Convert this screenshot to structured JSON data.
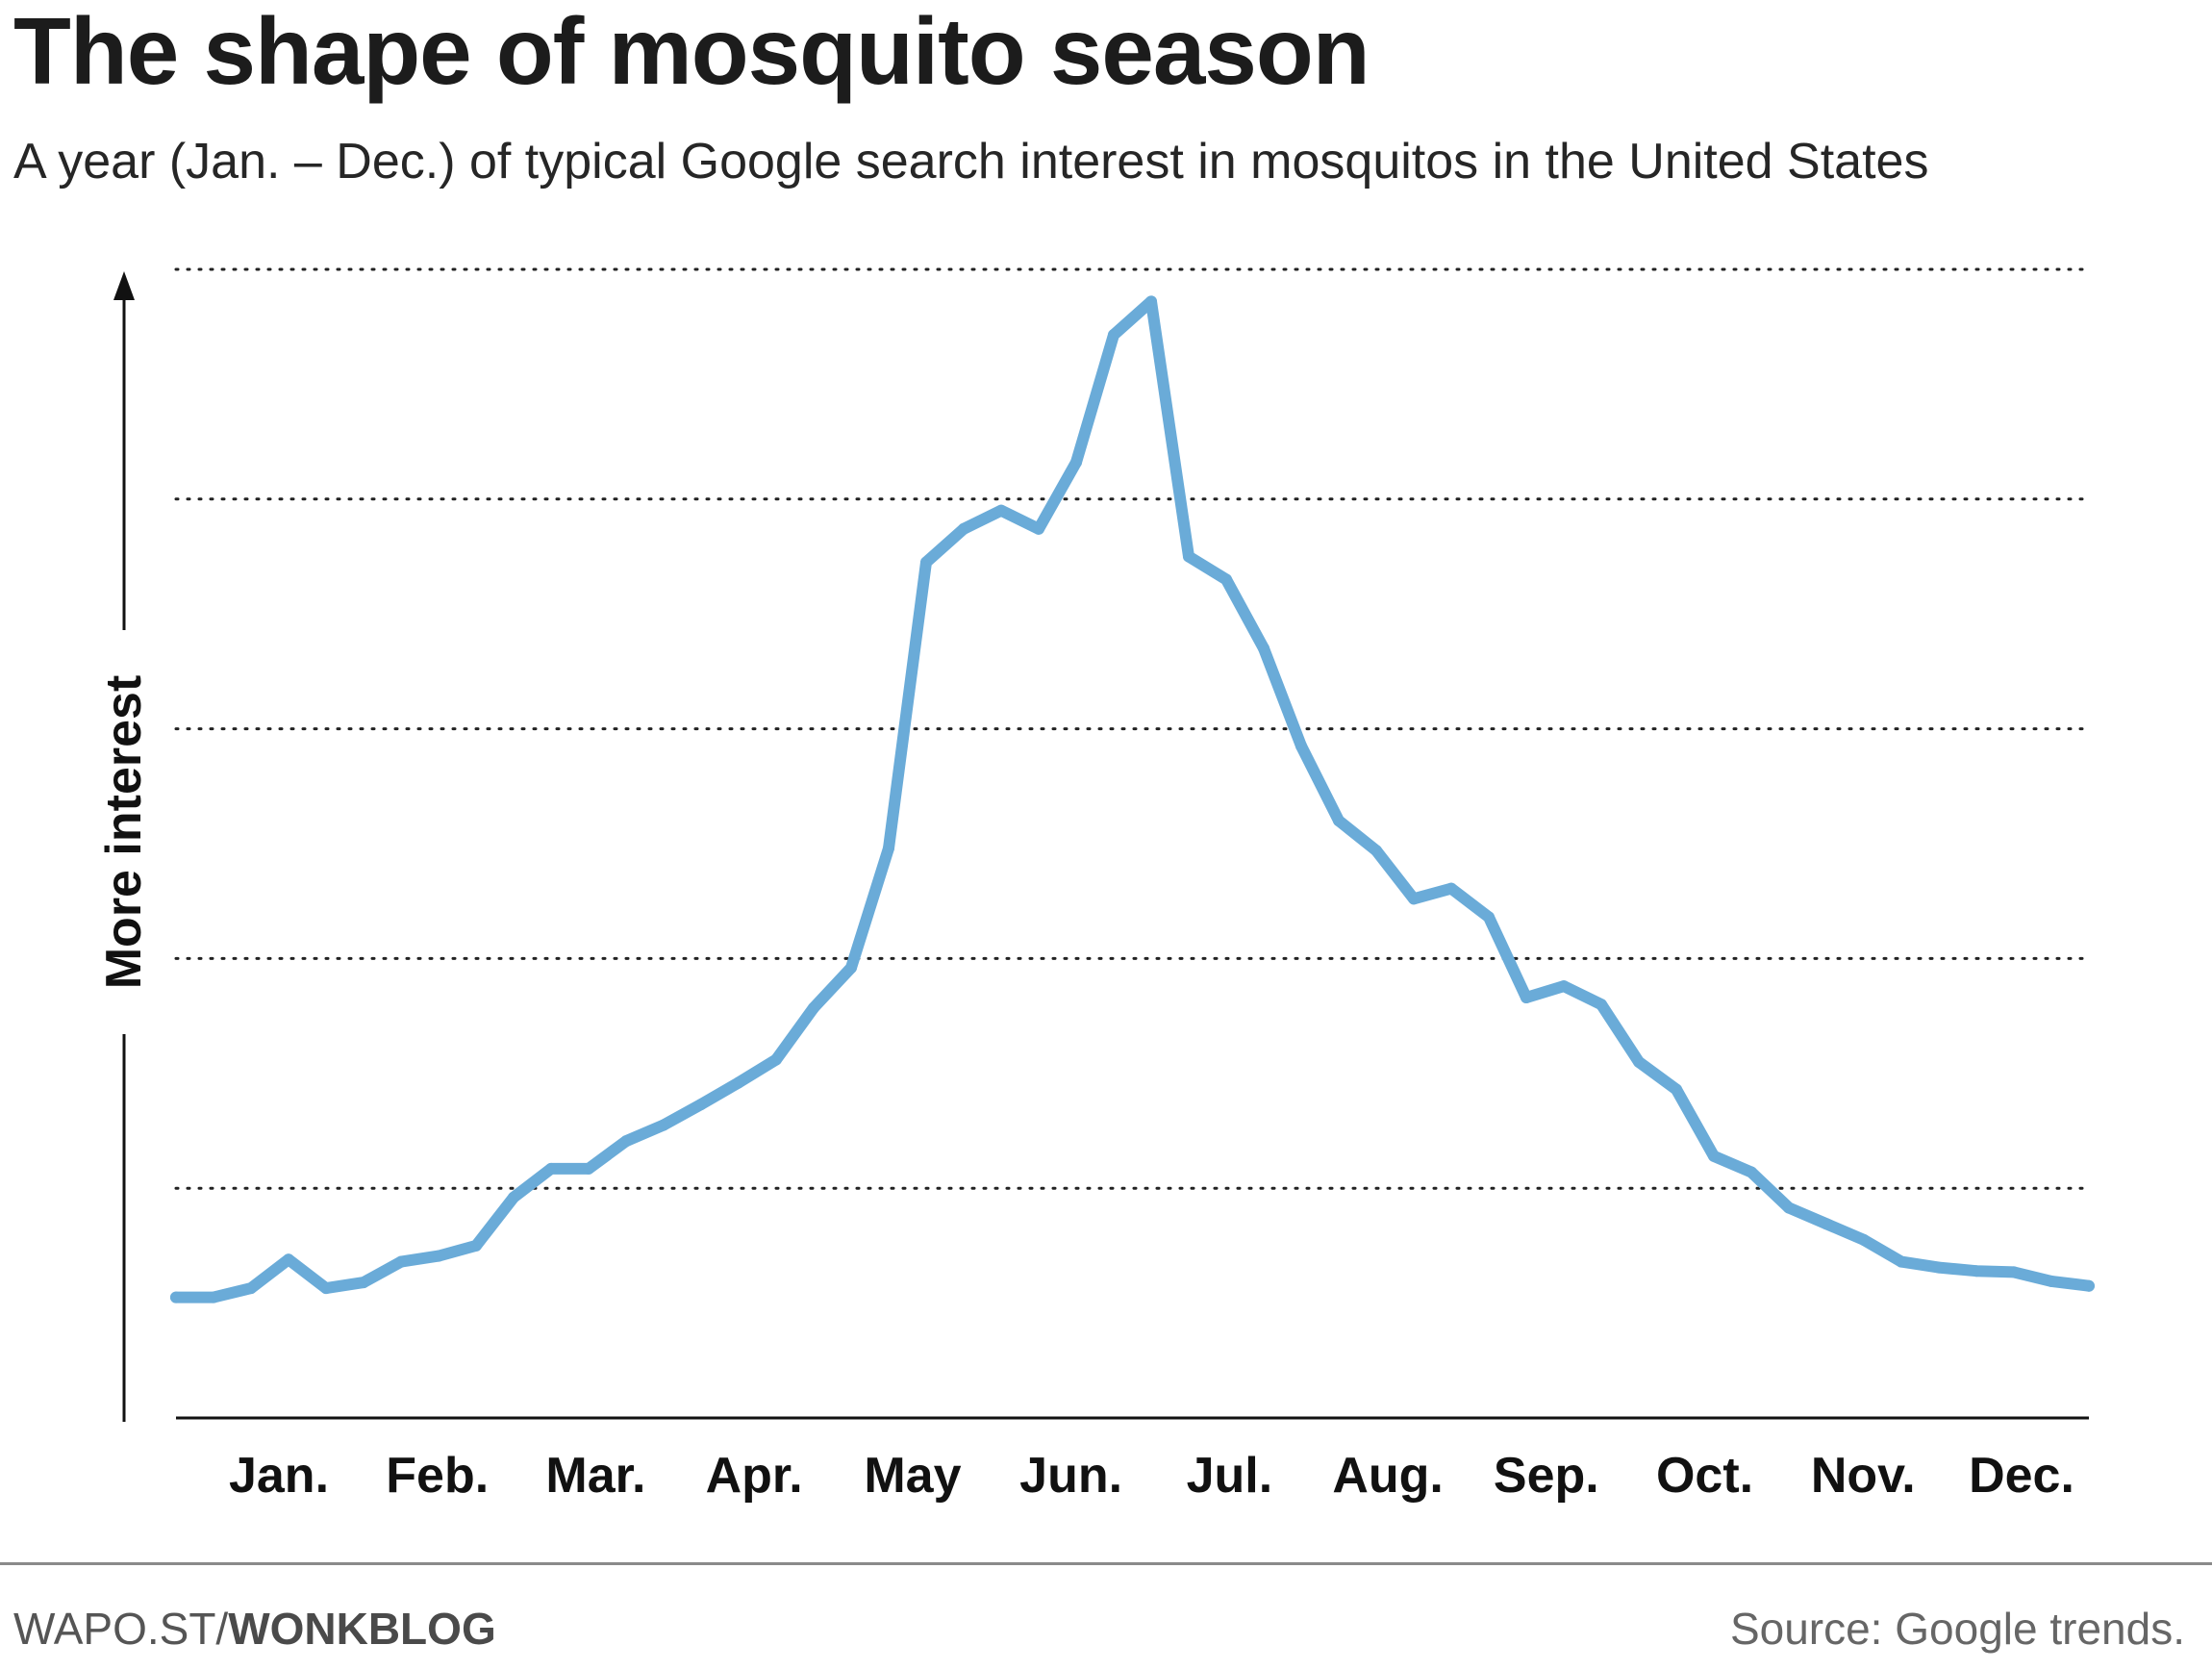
{
  "header": {
    "title": "The shape of mosquito season",
    "subtitle": "A year (Jan. – Dec.) of typical Google search interest in mosquitos in the United States"
  },
  "footer": {
    "credit_prefix": "WAPO.ST/",
    "credit_bold": "WONKBLOG",
    "source": "Source: Google trends."
  },
  "chart_data": {
    "type": "line",
    "title": "The shape of mosquito season",
    "subtitle": "A year (Jan. – Dec.) of typical Google search interest in mosquitos in the United States",
    "xlabel": "",
    "ylabel": "More interest",
    "categories": [
      "Jan.",
      "Feb.",
      "Mar.",
      "Apr.",
      "May",
      "Jun.",
      "Jul.",
      "Aug.",
      "Sep.",
      "Oct.",
      "Nov.",
      "Dec."
    ],
    "x_unit": "week of year",
    "xlim": [
      1,
      52
    ],
    "ylim": [
      0,
      100
    ],
    "y_ticks_labeled": false,
    "gridlines": "dotted, horizontal",
    "color": "#6aabd8",
    "series": [
      {
        "x": [
          1,
          2,
          3,
          4,
          5,
          6,
          7,
          8,
          9,
          10,
          11,
          12,
          13,
          14,
          15,
          16,
          17,
          18,
          19,
          20,
          21,
          22,
          23,
          24,
          25,
          26,
          27,
          28,
          29,
          30,
          31,
          32,
          33,
          34,
          35,
          36,
          37,
          38,
          39,
          40,
          41,
          42,
          43,
          44,
          45,
          46,
          47,
          48,
          49,
          50,
          51,
          52
        ],
        "values": [
          10.5,
          10.5,
          11.3,
          13.8,
          11.3,
          11.8,
          13.6,
          14.1,
          15.0,
          19.2,
          21.7,
          21.7,
          24.1,
          25.5,
          27.3,
          29.2,
          31.2,
          35.7,
          39.2,
          49.6,
          74.5,
          77.4,
          79.0,
          77.4,
          83.2,
          94.3,
          97.2,
          75.0,
          73.0,
          67.0,
          58.5,
          52.0,
          49.4,
          45.2,
          46.1,
          43.6,
          36.6,
          37.6,
          36.0,
          31.0,
          28.6,
          22.8,
          21.4,
          18.3,
          16.9,
          15.5,
          13.6,
          13.1,
          12.8,
          12.7,
          11.9,
          11.5
        ]
      }
    ]
  }
}
